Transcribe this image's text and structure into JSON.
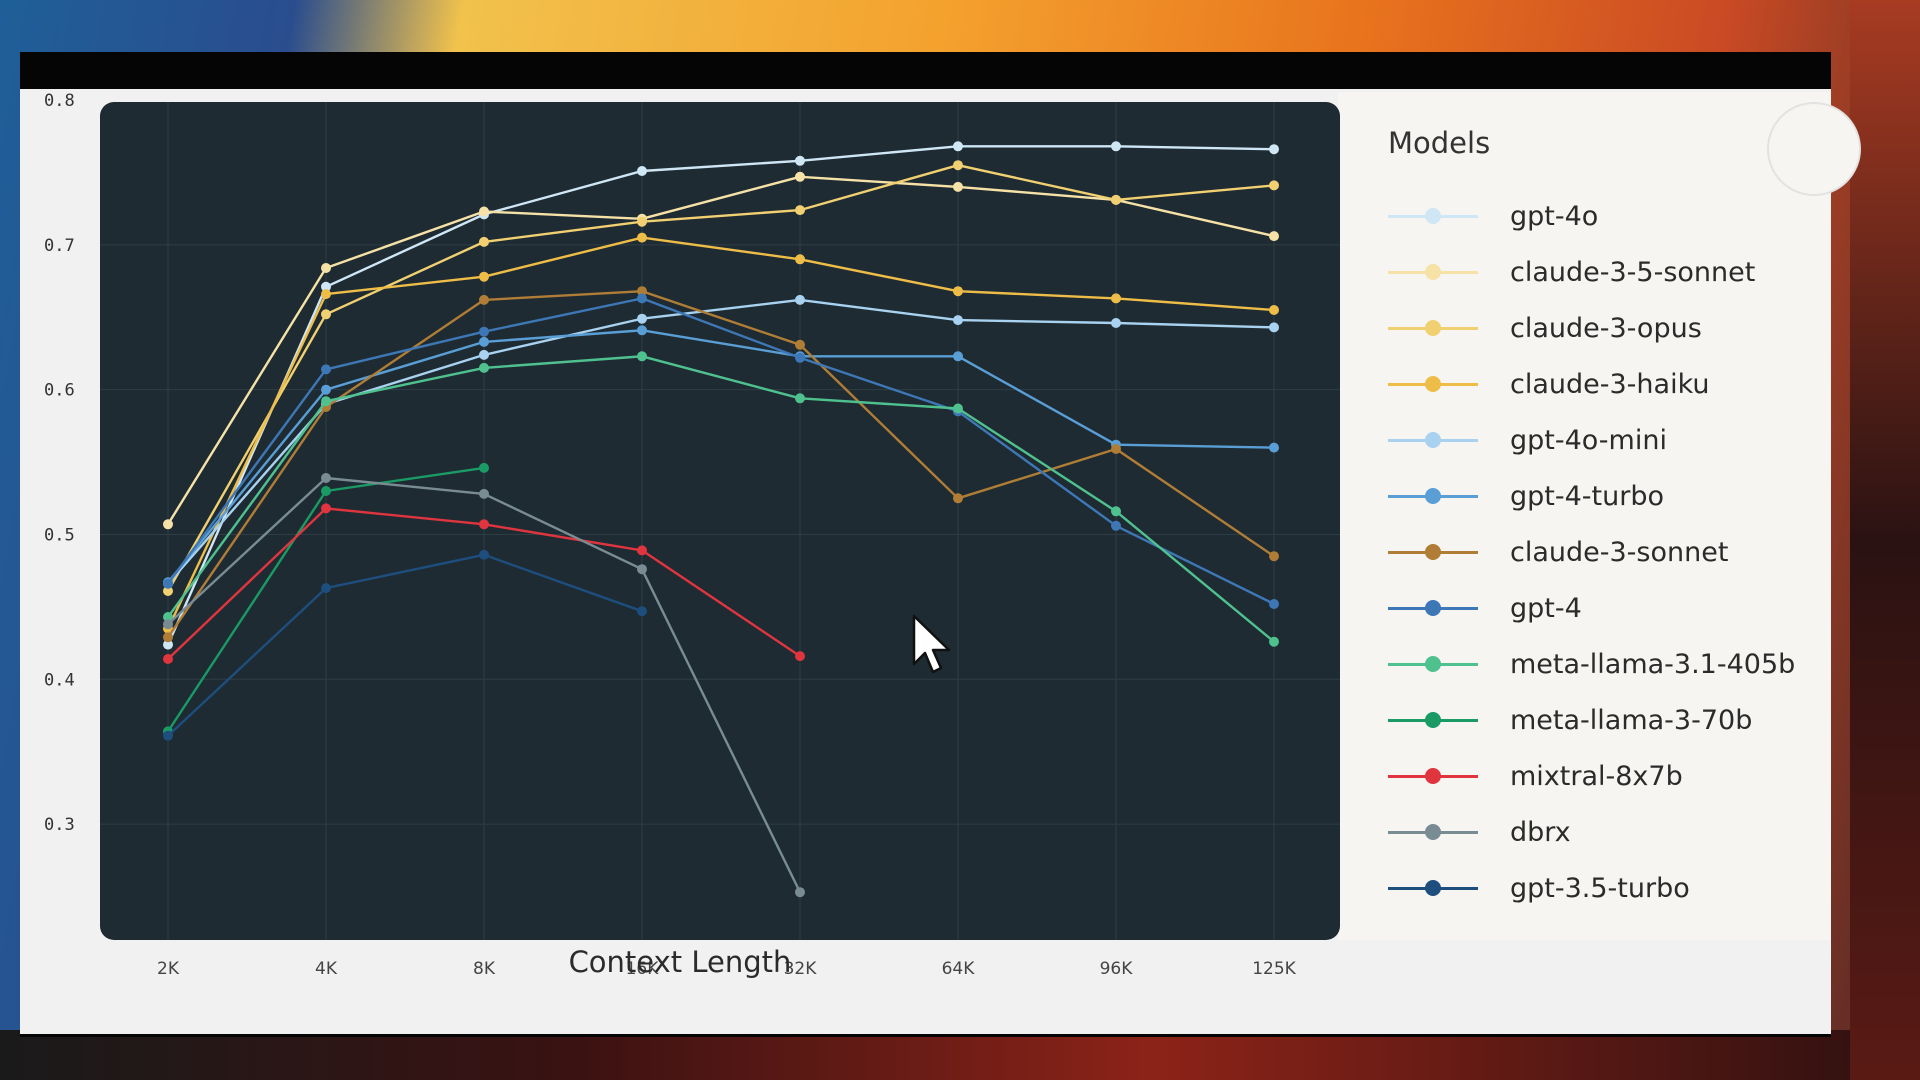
{
  "chart_data": {
    "type": "line",
    "xlabel": "Context Length",
    "ylabel": "",
    "categories": [
      "2K",
      "4K",
      "8K",
      "16K",
      "32K",
      "64K",
      "96K",
      "125K"
    ],
    "ylim": [
      0.22,
      0.8
    ],
    "yticks": [
      "0.8",
      "0.7",
      "0.6",
      "0.5",
      "0.4",
      "0.3"
    ],
    "ytick_values": [
      0.8,
      0.7,
      0.6,
      0.5,
      0.4,
      0.3
    ],
    "grid": true,
    "legend_title": "Models",
    "legend_position": "right",
    "series": [
      {
        "name": "gpt-4o",
        "color": "#cfe6f5",
        "values": [
          0.424,
          0.671,
          0.721,
          0.751,
          0.758,
          0.768,
          0.768,
          0.766
        ]
      },
      {
        "name": "claude-3-5-sonnet",
        "color": "#f6e2a6",
        "values": [
          0.507,
          0.684,
          0.723,
          0.718,
          0.747,
          0.74,
          0.731,
          0.706
        ]
      },
      {
        "name": "claude-3-opus",
        "color": "#f1d071",
        "values": [
          0.461,
          0.652,
          0.702,
          0.716,
          0.724,
          0.755,
          0.731,
          0.741
        ]
      },
      {
        "name": "claude-3-haiku",
        "color": "#eebd48",
        "values": [
          0.435,
          0.666,
          0.678,
          0.705,
          0.69,
          0.668,
          0.663,
          0.655
        ]
      },
      {
        "name": "gpt-4o-mini",
        "color": "#a8d2f0",
        "values": [
          0.466,
          0.59,
          0.624,
          0.649,
          0.662,
          0.648,
          0.646,
          0.643
        ]
      },
      {
        "name": "gpt-4-turbo",
        "color": "#5a9ed6",
        "values": [
          0.467,
          0.6,
          0.633,
          0.641,
          0.623,
          0.623,
          0.562,
          0.56
        ]
      },
      {
        "name": "claude-3-sonnet",
        "color": "#b07d36",
        "values": [
          0.429,
          0.588,
          0.662,
          0.668,
          0.631,
          0.525,
          0.559,
          0.485
        ]
      },
      {
        "name": "gpt-4",
        "color": "#3d77b5",
        "values": [
          0.466,
          0.614,
          0.64,
          0.663,
          0.622,
          0.585,
          0.506,
          0.452
        ]
      },
      {
        "name": "meta-llama-3.1-405b",
        "color": "#4fc18f",
        "values": [
          0.443,
          0.592,
          0.615,
          0.623,
          0.594,
          0.587,
          0.516,
          0.426
        ]
      },
      {
        "name": "meta-llama-3-70b",
        "color": "#1a9a64",
        "values": [
          0.364,
          0.53,
          0.546,
          null,
          null,
          null,
          null,
          null
        ]
      },
      {
        "name": "mixtral-8x7b",
        "color": "#e0353e",
        "values": [
          0.414,
          0.518,
          0.507,
          0.489,
          0.416,
          null,
          null,
          null
        ]
      },
      {
        "name": "dbrx",
        "color": "#7a8c93",
        "values": [
          0.438,
          0.539,
          0.528,
          0.476,
          0.253,
          null,
          null,
          null
        ]
      },
      {
        "name": "gpt-3.5-turbo",
        "color": "#1d4e7e",
        "values": [
          0.361,
          0.463,
          0.486,
          0.447,
          null,
          null,
          null,
          null
        ]
      }
    ]
  }
}
